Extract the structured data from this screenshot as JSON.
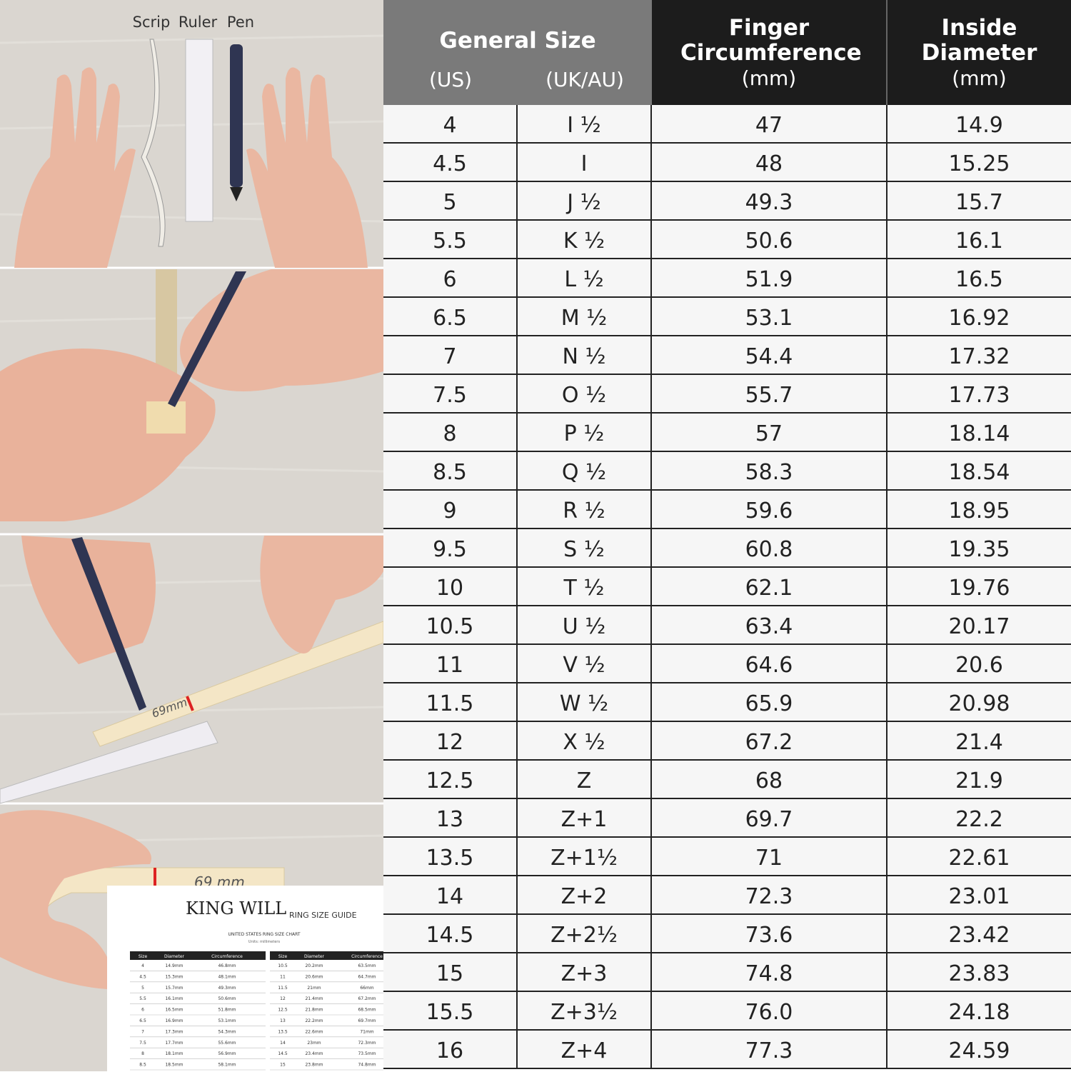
{
  "illustration": {
    "labels": [
      "Scrip",
      "Ruler",
      "Pen"
    ],
    "mark_1": "69mm",
    "mark_2": "69 mm",
    "guide": {
      "brand": "KING WILL",
      "title": "RING SIZE GUIDE",
      "subtitle": "UNITED STATES RING SIZE CHART",
      "units": "Units: millimeters",
      "columns": [
        "Size",
        "Diameter",
        "Circumference"
      ],
      "rows_left": [
        [
          "4",
          "14.9mm",
          "46.8mm"
        ],
        [
          "4.5",
          "15.3mm",
          "48.1mm"
        ],
        [
          "5",
          "15.7mm",
          "49.3mm"
        ],
        [
          "5.5",
          "16.1mm",
          "50.6mm"
        ],
        [
          "6",
          "16.5mm",
          "51.8mm"
        ],
        [
          "6.5",
          "16.9mm",
          "53.1mm"
        ],
        [
          "7",
          "17.3mm",
          "54.3mm"
        ],
        [
          "7.5",
          "17.7mm",
          "55.6mm"
        ],
        [
          "8",
          "18.1mm",
          "56.9mm"
        ],
        [
          "8.5",
          "18.5mm",
          "58.1mm"
        ]
      ],
      "rows_right": [
        [
          "10.5",
          "20.2mm",
          "63.5mm"
        ],
        [
          "11",
          "20.6mm",
          "64.7mm"
        ],
        [
          "11.5",
          "21mm",
          "66mm"
        ],
        [
          "12",
          "21.4mm",
          "67.2mm"
        ],
        [
          "12.5",
          "21.8mm",
          "68.5mm"
        ],
        [
          "13",
          "22.2mm",
          "69.7mm"
        ],
        [
          "13.5",
          "22.6mm",
          "71mm"
        ],
        [
          "14",
          "23mm",
          "72.3mm"
        ],
        [
          "14.5",
          "23.4mm",
          "73.5mm"
        ],
        [
          "15",
          "23.8mm",
          "74.8mm"
        ]
      ]
    }
  },
  "table": {
    "header": {
      "general": "General Size",
      "us": "(US)",
      "uk": "(UK/AU)",
      "circ": "Finger Circumference",
      "circ_unit": "(mm)",
      "diam": "Inside Diameter",
      "diam_unit": "(mm)"
    },
    "rows": [
      [
        "4",
        "I ½",
        "47",
        "14.9"
      ],
      [
        "4.5",
        "I",
        "48",
        "15.25"
      ],
      [
        "5",
        "J ½",
        "49.3",
        "15.7"
      ],
      [
        "5.5",
        "K ½",
        "50.6",
        "16.1"
      ],
      [
        "6",
        "L ½",
        "51.9",
        "16.5"
      ],
      [
        "6.5",
        "M ½",
        "53.1",
        "16.92"
      ],
      [
        "7",
        "N ½",
        "54.4",
        "17.32"
      ],
      [
        "7.5",
        "O ½",
        "55.7",
        "17.73"
      ],
      [
        "8",
        "P ½",
        "57",
        "18.14"
      ],
      [
        "8.5",
        "Q ½",
        "58.3",
        "18.54"
      ],
      [
        "9",
        "R ½",
        "59.6",
        "18.95"
      ],
      [
        "9.5",
        "S ½",
        "60.8",
        "19.35"
      ],
      [
        "10",
        "T ½",
        "62.1",
        "19.76"
      ],
      [
        "10.5",
        "U ½",
        "63.4",
        "20.17"
      ],
      [
        "11",
        "V ½",
        "64.6",
        "20.6"
      ],
      [
        "11.5",
        "W ½",
        "65.9",
        "20.98"
      ],
      [
        "12",
        "X ½",
        "67.2",
        "21.4"
      ],
      [
        "12.5",
        "Z",
        "68",
        "21.9"
      ],
      [
        "13",
        "Z+1",
        "69.7",
        "22.2"
      ],
      [
        "13.5",
        "Z+1½",
        "71",
        "22.61"
      ],
      [
        "14",
        "Z+2",
        "72.3",
        "23.01"
      ],
      [
        "14.5",
        "Z+2½",
        "73.6",
        "23.42"
      ],
      [
        "15",
        "Z+3",
        "74.8",
        "23.83"
      ],
      [
        "15.5",
        "Z+3½",
        "76.0",
        "24.18"
      ],
      [
        "16",
        "Z+4",
        "77.3",
        "24.59"
      ]
    ]
  }
}
